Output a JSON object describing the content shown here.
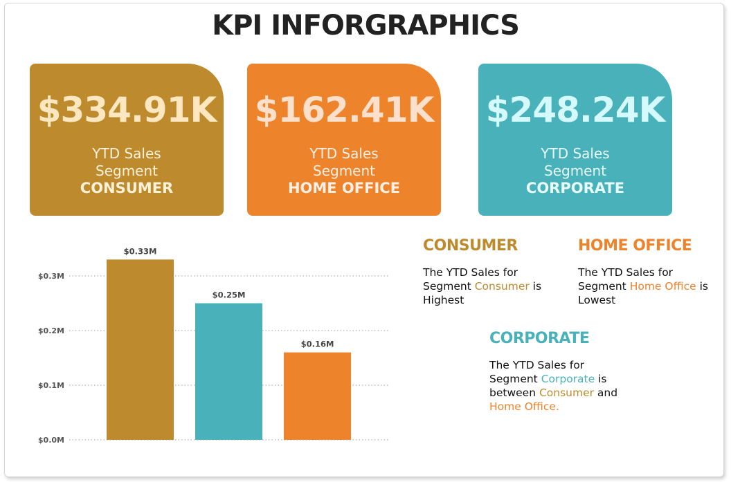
{
  "title": "KPI INFORGRAPHICS",
  "colors": {
    "consumer": "#bd8b2d",
    "home_office": "#ed832b",
    "corporate": "#48b1ba"
  },
  "cards": [
    {
      "value": "$334.91K",
      "line1": "YTD Sales",
      "line2": "Segment",
      "segment": "CONSUMER"
    },
    {
      "value": "$162.41K",
      "line1": "YTD Sales",
      "line2": "Segment",
      "segment": "HOME OFFICE"
    },
    {
      "value": "$248.24K",
      "line1": "YTD Sales",
      "line2": "Segment",
      "segment": "CORPORATE"
    }
  ],
  "notes": {
    "consumer": {
      "heading": "CONSUMER",
      "t1": "The YTD Sales for Segment ",
      "hl": "Consumer",
      "t2": " is Highest"
    },
    "home_office": {
      "heading": "HOME OFFICE",
      "t1": "The YTD Sales for Segment ",
      "hl": "Home Office",
      "t2": " is Lowest"
    },
    "corporate": {
      "heading": "CORPORATE",
      "t1": "The YTD Sales for Segment ",
      "hl": "Corporate",
      "t2": " is between ",
      "hl2": "Consumer",
      "t3": " and ",
      "hl3": "Home Office."
    }
  },
  "chart_data": {
    "type": "bar",
    "categories": [
      "",
      "",
      ""
    ],
    "values": [
      0.33,
      0.25,
      0.16
    ],
    "data_labels": [
      "$0.33M",
      "$0.25M",
      "$0.16M"
    ],
    "bar_colors": [
      "#bd8b2d",
      "#48b1ba",
      "#ed832b"
    ],
    "y_ticks": [
      0,
      0.1,
      0.2,
      0.3
    ],
    "y_tick_labels": [
      "$0.0M",
      "$0.1M",
      "$0.2M",
      "$0.3M"
    ],
    "ylim": [
      0,
      0.33
    ],
    "grid": true,
    "title": "",
    "xlabel": "",
    "ylabel": ""
  }
}
